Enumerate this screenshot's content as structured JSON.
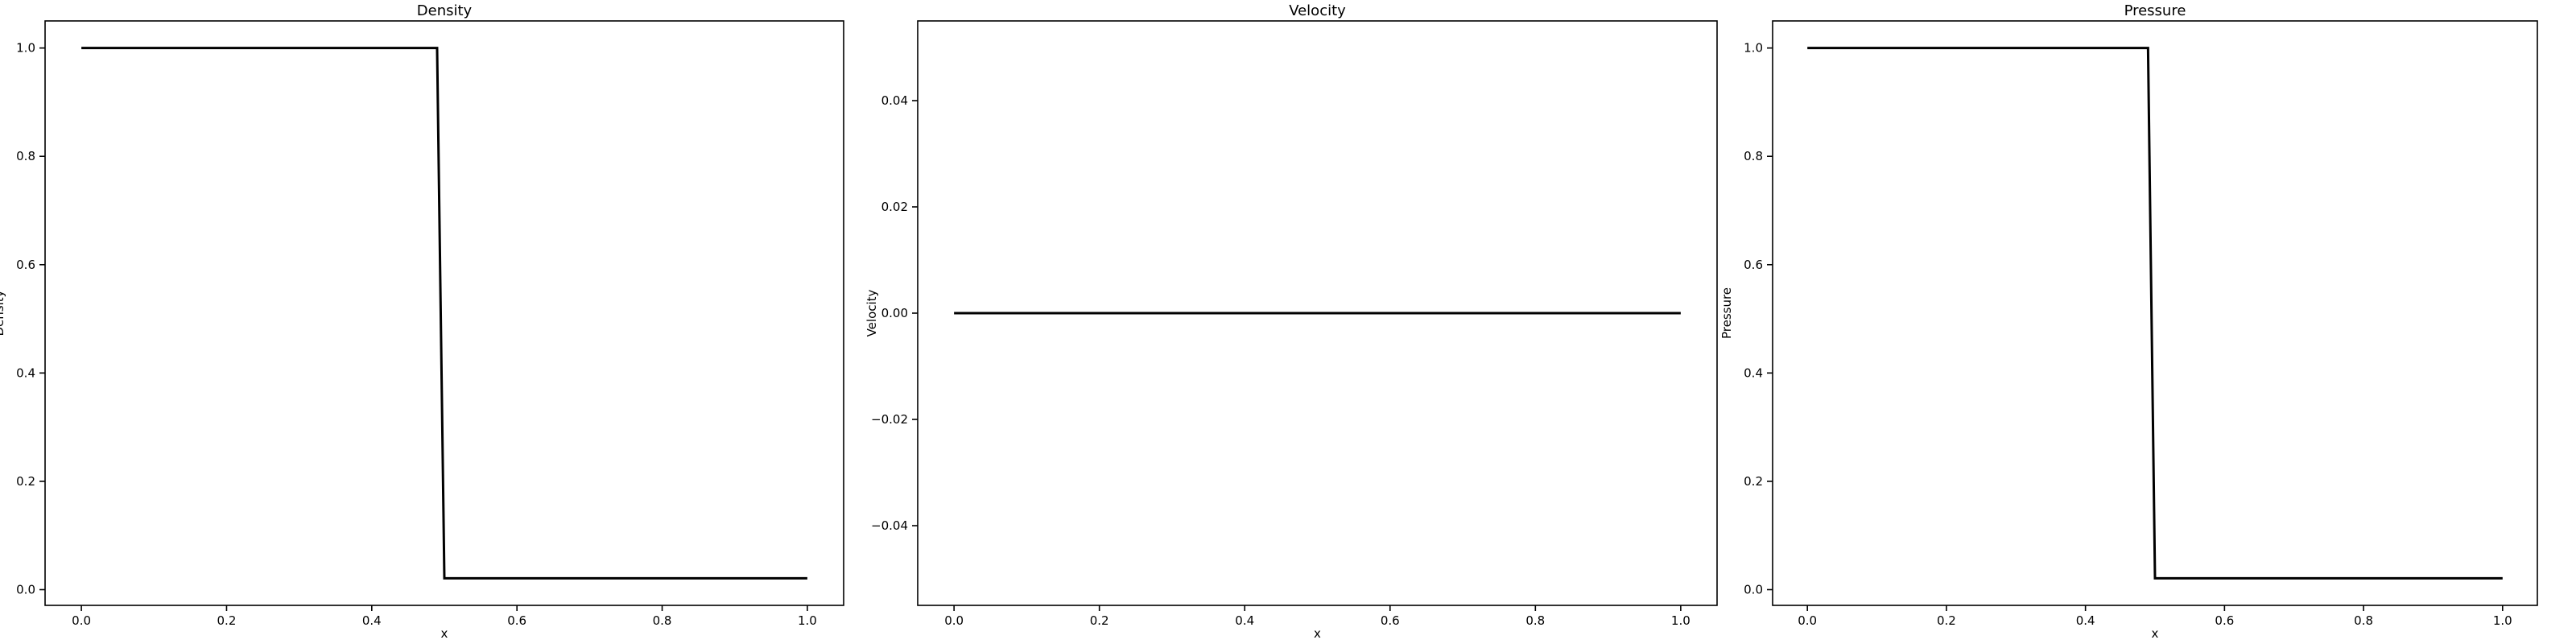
{
  "chart_data": [
    {
      "type": "line",
      "title": "Density",
      "xlabel": "x",
      "ylabel": "Density",
      "xlim": [
        -0.05,
        1.05
      ],
      "ylim": [
        -0.029,
        1.05
      ],
      "xticks": [
        0.0,
        0.2,
        0.4,
        0.6,
        0.8,
        1.0
      ],
      "xtick_labels": [
        "0.0",
        "0.2",
        "0.4",
        "0.6",
        "0.8",
        "1.0"
      ],
      "yticks": [
        0.0,
        0.2,
        0.4,
        0.6,
        0.8,
        1.0
      ],
      "ytick_labels": [
        "0.0",
        "0.2",
        "0.4",
        "0.6",
        "0.8",
        "1.0"
      ],
      "grid": false,
      "series": [
        {
          "color": "#000000",
          "x": [
            0.0,
            0.49,
            0.5,
            1.0
          ],
          "y": [
            1.0,
            1.0,
            0.021,
            0.021
          ]
        }
      ]
    },
    {
      "type": "line",
      "title": "Velocity",
      "xlabel": "x",
      "ylabel": "Velocity",
      "xlim": [
        -0.05,
        1.05
      ],
      "ylim": [
        -0.055,
        0.055
      ],
      "xticks": [
        0.0,
        0.2,
        0.4,
        0.6,
        0.8,
        1.0
      ],
      "xtick_labels": [
        "0.0",
        "0.2",
        "0.4",
        "0.6",
        "0.8",
        "1.0"
      ],
      "yticks": [
        -0.04,
        -0.02,
        0.0,
        0.02,
        0.04
      ],
      "ytick_labels": [
        "−0.04",
        "−0.02",
        "0.00",
        "0.02",
        "0.04"
      ],
      "grid": false,
      "series": [
        {
          "color": "#000000",
          "x": [
            0.0,
            1.0
          ],
          "y": [
            0.0,
            0.0
          ]
        }
      ]
    },
    {
      "type": "line",
      "title": "Pressure",
      "xlabel": "x",
      "ylabel": "Pressure",
      "xlim": [
        -0.05,
        1.05
      ],
      "ylim": [
        -0.029,
        1.05
      ],
      "xticks": [
        0.0,
        0.2,
        0.4,
        0.6,
        0.8,
        1.0
      ],
      "xtick_labels": [
        "0.0",
        "0.2",
        "0.4",
        "0.6",
        "0.8",
        "1.0"
      ],
      "yticks": [
        0.0,
        0.2,
        0.4,
        0.6,
        0.8,
        1.0
      ],
      "ytick_labels": [
        "0.0",
        "0.2",
        "0.4",
        "0.6",
        "0.8",
        "1.0"
      ],
      "grid": false,
      "series": [
        {
          "color": "#000000",
          "x": [
            0.0,
            0.49,
            0.5,
            1.0
          ],
          "y": [
            1.0,
            1.0,
            0.021,
            0.021
          ]
        }
      ]
    }
  ]
}
